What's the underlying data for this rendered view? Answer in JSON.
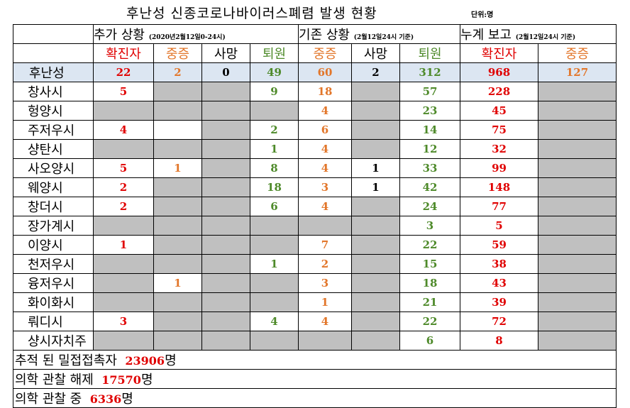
{
  "title": "후난성 신종코로나바이러스폐렴 발생 현황",
  "unit": "단위:명",
  "groups": [
    {
      "label": "추가 상황",
      "sub": "(2020년2월12일0-24시)"
    },
    {
      "label": "기존 상황",
      "sub": "(2월12일24시 기준)"
    },
    {
      "label": "누계 보고",
      "sub": "(2월12일24시 기준)"
    }
  ],
  "columns": [
    {
      "label": "확진자",
      "color": "#e00000"
    },
    {
      "label": "중증",
      "color": "#e2762a"
    },
    {
      "label": "사망",
      "color": "#000000"
    },
    {
      "label": "퇴원",
      "color": "#4e8a2a"
    },
    {
      "label": "중증",
      "color": "#e2762a"
    },
    {
      "label": "사망",
      "color": "#000000"
    },
    {
      "label": "퇴원",
      "color": "#4e8a2a"
    },
    {
      "label": "확진자",
      "color": "#e00000"
    },
    {
      "label": "중증",
      "color": "#e2762a"
    }
  ],
  "rows": [
    {
      "name": "후난성",
      "total": true,
      "cells": [
        "22",
        "2",
        "0",
        "49",
        "60",
        "2",
        "312",
        "968",
        "127"
      ]
    },
    {
      "name": "창사시",
      "cells": [
        "5",
        null,
        null,
        "9",
        "18",
        null,
        "57",
        "228",
        null
      ]
    },
    {
      "name": "헝양시",
      "cells": [
        null,
        null,
        null,
        null,
        "4",
        null,
        "23",
        "45",
        null
      ]
    },
    {
      "name": "주저우시",
      "cells": [
        "4",
        "",
        null,
        "2",
        "6",
        null,
        "14",
        "75",
        null
      ]
    },
    {
      "name": "샹탄시",
      "cells": [
        null,
        null,
        null,
        "1",
        "4",
        null,
        "12",
        "32",
        null
      ]
    },
    {
      "name": "사오양시",
      "cells": [
        "5",
        "1",
        null,
        "8",
        "4",
        "1",
        "33",
        "99",
        null
      ]
    },
    {
      "name": "웨양시",
      "cells": [
        "2",
        null,
        null,
        "18",
        "3",
        "1",
        "42",
        "148",
        null
      ]
    },
    {
      "name": "창더시",
      "cells": [
        "2",
        null,
        null,
        "6",
        "4",
        null,
        "24",
        "77",
        null
      ]
    },
    {
      "name": "장가계시",
      "cells": [
        null,
        null,
        null,
        null,
        null,
        null,
        "3",
        "5",
        null
      ]
    },
    {
      "name": "이양시",
      "cells": [
        "1",
        null,
        null,
        null,
        "7",
        null,
        "22",
        "59",
        null
      ]
    },
    {
      "name": "천저우시",
      "cells": [
        null,
        null,
        null,
        "1",
        "2",
        null,
        "15",
        "38",
        null
      ]
    },
    {
      "name": "융저우시",
      "cells": [
        null,
        "1",
        null,
        null,
        "3",
        null,
        "18",
        "43",
        null
      ]
    },
    {
      "name": "화이화시",
      "cells": [
        null,
        null,
        null,
        null,
        "1",
        null,
        "21",
        "39",
        null
      ]
    },
    {
      "name": "뤄디시",
      "cells": [
        "3",
        null,
        null,
        "4",
        "4",
        null,
        "22",
        "72",
        null
      ]
    },
    {
      "name": "샹시자치주",
      "cells": [
        null,
        null,
        null,
        null,
        null,
        null,
        "6",
        "8",
        null
      ]
    }
  ],
  "footer": [
    {
      "label": "추적 된 밀접접촉자",
      "value": "23906",
      "unit": "명"
    },
    {
      "label": "의학 관찰 해제",
      "value": "17570",
      "unit": "명"
    },
    {
      "label": "의학 관찰 중",
      "value": "6336",
      "unit": "명"
    }
  ]
}
